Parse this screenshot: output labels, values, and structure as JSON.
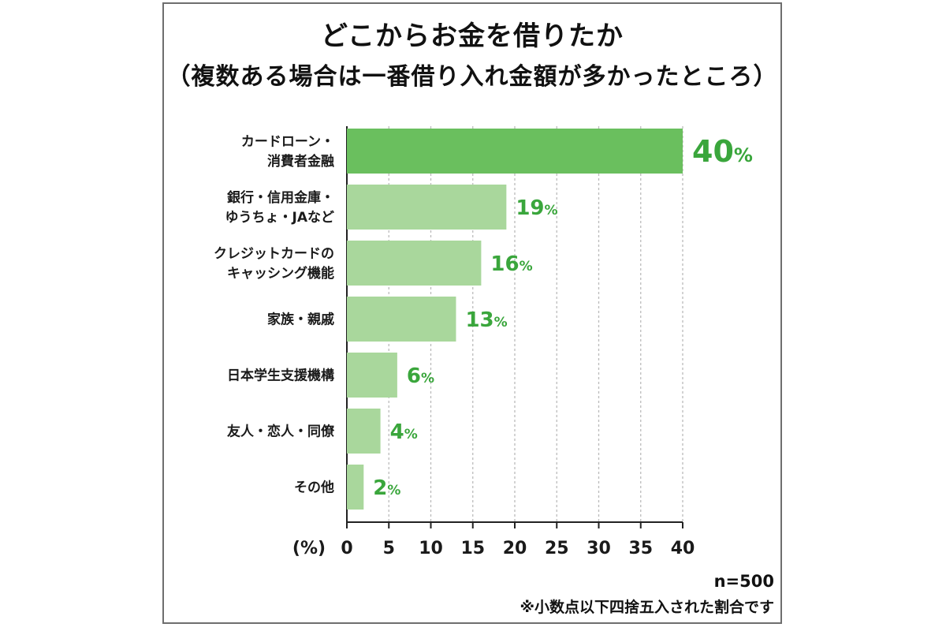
{
  "title": "どこからお金を借りたか",
  "subtitle": "（複数ある場合は一番借り入れ金額が多かったところ）",
  "note_n": "n=500",
  "note_rounding": "※小数点以下四捨五入された割合です",
  "colors": {
    "highlight_bar": "#6abf5e",
    "bar": "#a9d79c",
    "value_text": "#3aa63c",
    "grid": "#bbbbbb"
  },
  "chart_data": {
    "type": "bar",
    "orientation": "horizontal",
    "title": "どこからお金を借りたか",
    "subtitle": "（複数ある場合は一番借り入れ金額が多かったところ）",
    "xlabel": "(%)",
    "categories": [
      [
        "カードローン・",
        "消費者金融"
      ],
      [
        "銀行・信用金庫・",
        "ゆうちょ・JAなど"
      ],
      [
        "クレジットカードの",
        "キャッシング機能"
      ],
      [
        "家族・親戚"
      ],
      [
        "日本学生支援機構"
      ],
      [
        "友人・恋人・同僚"
      ],
      [
        "その他"
      ]
    ],
    "values": [
      40,
      19,
      16,
      13,
      6,
      4,
      2
    ],
    "value_suffix": "%",
    "xlim": [
      0,
      40
    ],
    "xticks": [
      0,
      5,
      10,
      15,
      20,
      25,
      30,
      35,
      40
    ],
    "grid": "vertical dashed",
    "highlight_index": 0
  }
}
